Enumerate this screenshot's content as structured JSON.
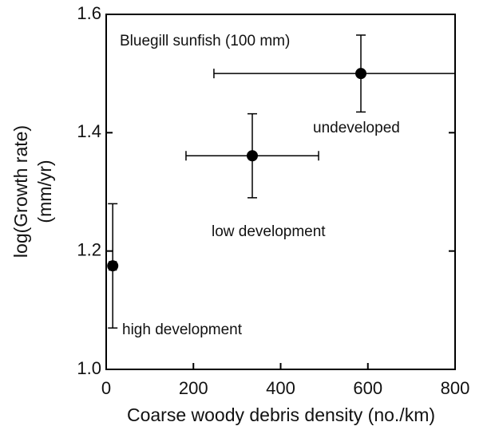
{
  "chart_data": {
    "type": "scatter",
    "xlabel": "Coarse woody debris density (no./km)",
    "ylabel": [
      "log(Growth rate)",
      "(mm/yr)"
    ],
    "annotations": [
      "Bluegill sunfish (100 mm)",
      "high development",
      "low development",
      "undeveloped"
    ],
    "series": [
      {
        "color": "#000000",
        "x": [
          15,
          335,
          584
        ],
        "values": [
          1.175,
          1.361,
          1.5
        ],
        "xerr": [
          8,
          152,
          337
        ],
        "yerr": [
          0.105,
          0.071,
          0.065
        ]
      }
    ],
    "xlim": [
      0,
      800
    ],
    "xticks": [
      0,
      200,
      400,
      600,
      800
    ],
    "ylim": [
      1.0,
      1.6
    ],
    "yticks": [
      {
        "value": 1.0,
        "label": "1.0"
      },
      1.2,
      1.4,
      1.6
    ],
    "grid": false
  }
}
